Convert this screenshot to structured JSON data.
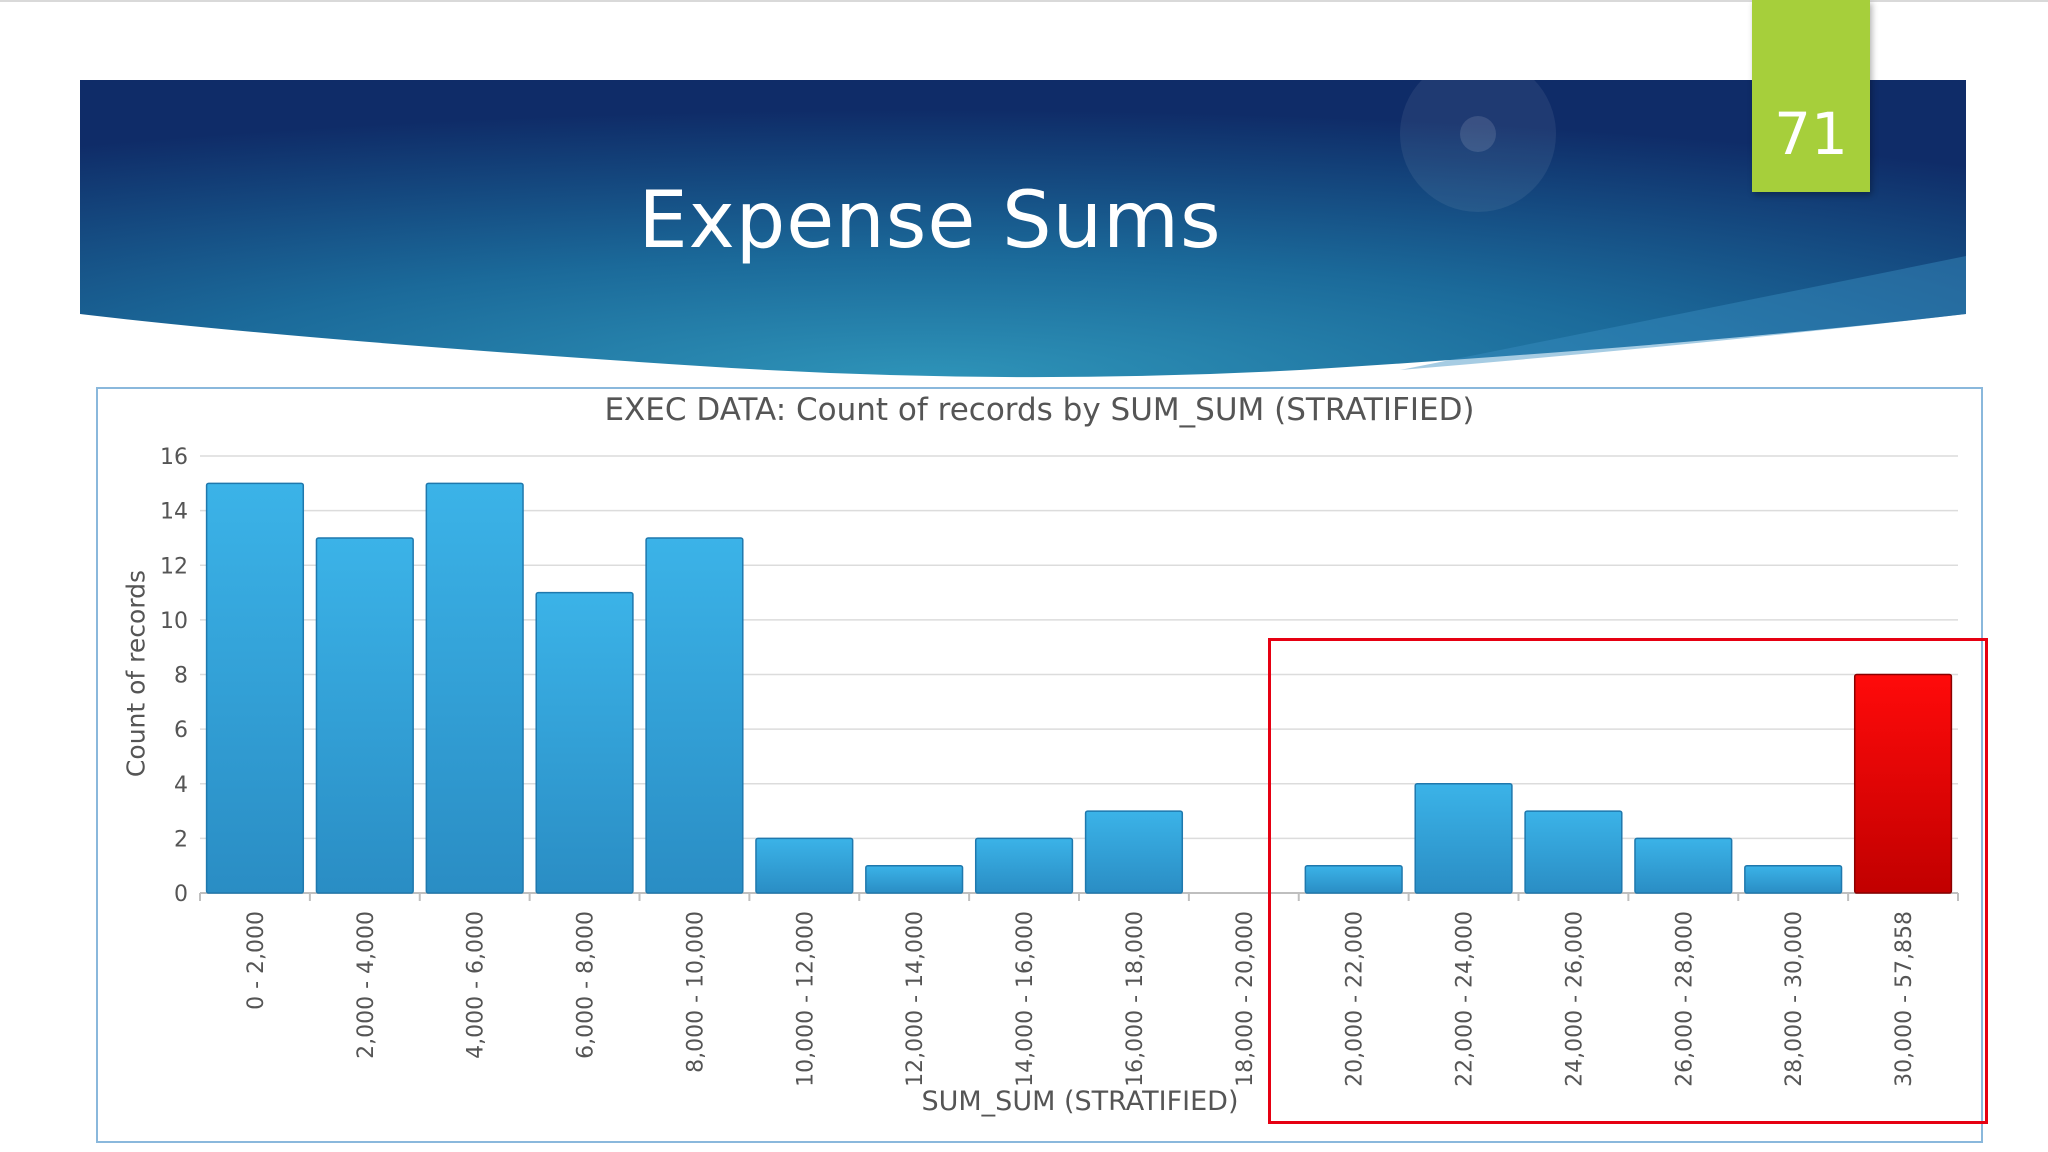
{
  "slide": {
    "title": "Expense Sums",
    "page_number": "71",
    "colors": {
      "banner_dark": "#0f2c68",
      "banner_mid": "#1b6a9a",
      "banner_light": "#2e93b8",
      "badge": "#a6cf3b",
      "bar": "#37a9df",
      "bar_highlight": "#e60012",
      "highlight_box": "#e60012"
    }
  },
  "chart_data": {
    "type": "bar",
    "title": "EXEC DATA: Count of records by SUM_SUM (STRATIFIED)",
    "xlabel": "SUM_SUM (STRATIFIED)",
    "ylabel": "Count of records",
    "ylim": [
      0,
      16
    ],
    "yticks": [
      0,
      2,
      4,
      6,
      8,
      10,
      12,
      14,
      16
    ],
    "grid": true,
    "categories": [
      "0 - 2,000",
      "2,000 - 4,000",
      "4,000 - 6,000",
      "6,000 - 8,000",
      "8,000 - 10,000",
      "10,000 - 12,000",
      "12,000 - 14,000",
      "14,000 - 16,000",
      "16,000 - 18,000",
      "18,000 - 20,000",
      "20,000 - 22,000",
      "22,000 - 24,000",
      "24,000 - 26,000",
      "26,000 - 28,000",
      "28,000 - 30,000",
      "30,000 - 57,858"
    ],
    "values": [
      15,
      13,
      15,
      11,
      13,
      2,
      1,
      2,
      3,
      0,
      1,
      4,
      3,
      2,
      1,
      8
    ],
    "highlighted_category": "30,000 - 57,858",
    "highlight_region": [
      "20,000 - 22,000",
      "30,000 - 57,858"
    ]
  }
}
